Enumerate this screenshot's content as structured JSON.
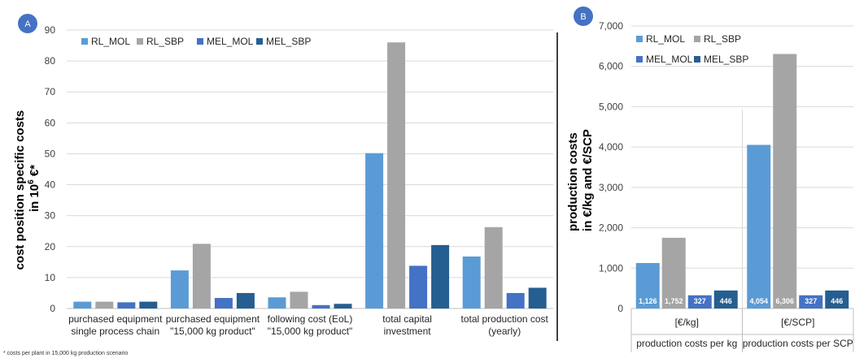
{
  "colors": {
    "RL_MOL": "#5b9bd5",
    "RL_SBP": "#a5a5a5",
    "MEL_MOL": "#4472c4",
    "MEL_SBP": "#255e91",
    "badge": "#4472c4"
  },
  "footnote": "* costs per plant in 15,000 kg production scenario",
  "chart_data": [
    {
      "panel": "A",
      "type": "bar",
      "ylabel_line1": "cost position specific costs",
      "ylabel_line2": "in 10",
      "ylabel_sup": "6",
      "ylabel_suffix": " €*",
      "ylim": [
        0,
        90
      ],
      "yticks": [
        0,
        10,
        20,
        30,
        40,
        50,
        60,
        70,
        80,
        90
      ],
      "grid": true,
      "legend": "top-left",
      "categories": [
        [
          "purchased equipment",
          "single process chain"
        ],
        [
          "purchased equipment",
          "\"15,000 kg product\""
        ],
        [
          "following cost (EoL)",
          "\"15,000 kg product\""
        ],
        [
          "total capital",
          "investment"
        ],
        [
          "total production cost",
          "(yearly)"
        ]
      ],
      "series": [
        {
          "name": "RL_MOL",
          "values": [
            2.2,
            12.3,
            3.6,
            50.2,
            16.8
          ]
        },
        {
          "name": "RL_SBP",
          "values": [
            2.2,
            20.9,
            5.4,
            86.0,
            26.3
          ]
        },
        {
          "name": "MEL_MOL",
          "values": [
            2.0,
            3.4,
            1.1,
            13.8,
            5.0
          ]
        },
        {
          "name": "MEL_SBP",
          "values": [
            2.2,
            5.0,
            1.5,
            20.5,
            6.7
          ]
        }
      ]
    },
    {
      "panel": "B",
      "type": "bar",
      "ylabel_line1": "production costs",
      "ylabel_line2": "in €/kg and €/SCP",
      "ylim": [
        0,
        7000
      ],
      "yticks": [
        "0",
        "1,000",
        "2,000",
        "3,000",
        "4,000",
        "5,000",
        "6,000",
        "7,000"
      ],
      "grid": true,
      "legend": "top-left",
      "categories": [
        "[€/kg]",
        "[€/SCP]"
      ],
      "groups": [
        "production costs per kg",
        "production costs per SCP"
      ],
      "series": [
        {
          "name": "RL_MOL",
          "values": [
            1126,
            4054
          ]
        },
        {
          "name": "RL_SBP",
          "values": [
            1752,
            6306
          ]
        },
        {
          "name": "MEL_MOL",
          "values": [
            327,
            327
          ]
        },
        {
          "name": "MEL_SBP",
          "values": [
            446,
            446
          ]
        }
      ],
      "data_labels": [
        [
          "1,126",
          "1,752",
          "327",
          "446"
        ],
        [
          "4,054",
          "6,306",
          "327",
          "446"
        ]
      ]
    }
  ]
}
